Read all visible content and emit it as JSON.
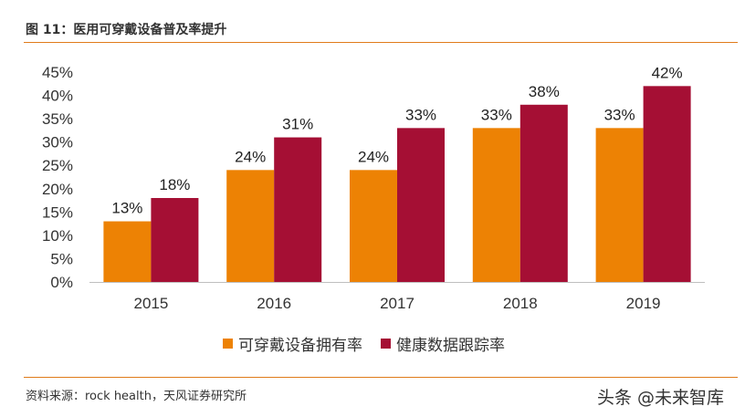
{
  "figure": {
    "title": "图 11：医用可穿戴设备普及率提升",
    "source": "资料来源：rock health，天风证券研究所",
    "watermark": "头条 @未来智库"
  },
  "chart_data": {
    "type": "bar",
    "title": "",
    "xlabel": "",
    "ylabel": "",
    "categories": [
      "2015",
      "2016",
      "2017",
      "2018",
      "2019"
    ],
    "series": [
      {
        "name": "可穿戴设备拥有率",
        "values": [
          13,
          24,
          24,
          33,
          33
        ],
        "labels": [
          "13%",
          "24%",
          "24%",
          "33%",
          "33%"
        ],
        "color": "#ed8204"
      },
      {
        "name": "健康数据跟踪率",
        "values": [
          18,
          31,
          33,
          38,
          42
        ],
        "labels": [
          "18%",
          "31%",
          "33%",
          "38%",
          "42%"
        ],
        "color": "#a50f34"
      }
    ],
    "ylim": [
      0,
      45
    ],
    "yticks": [
      "0%",
      "5%",
      "10%",
      "15%",
      "20%",
      "25%",
      "30%",
      "35%",
      "40%",
      "45%"
    ],
    "grid": false,
    "legend_position": "bottom"
  }
}
